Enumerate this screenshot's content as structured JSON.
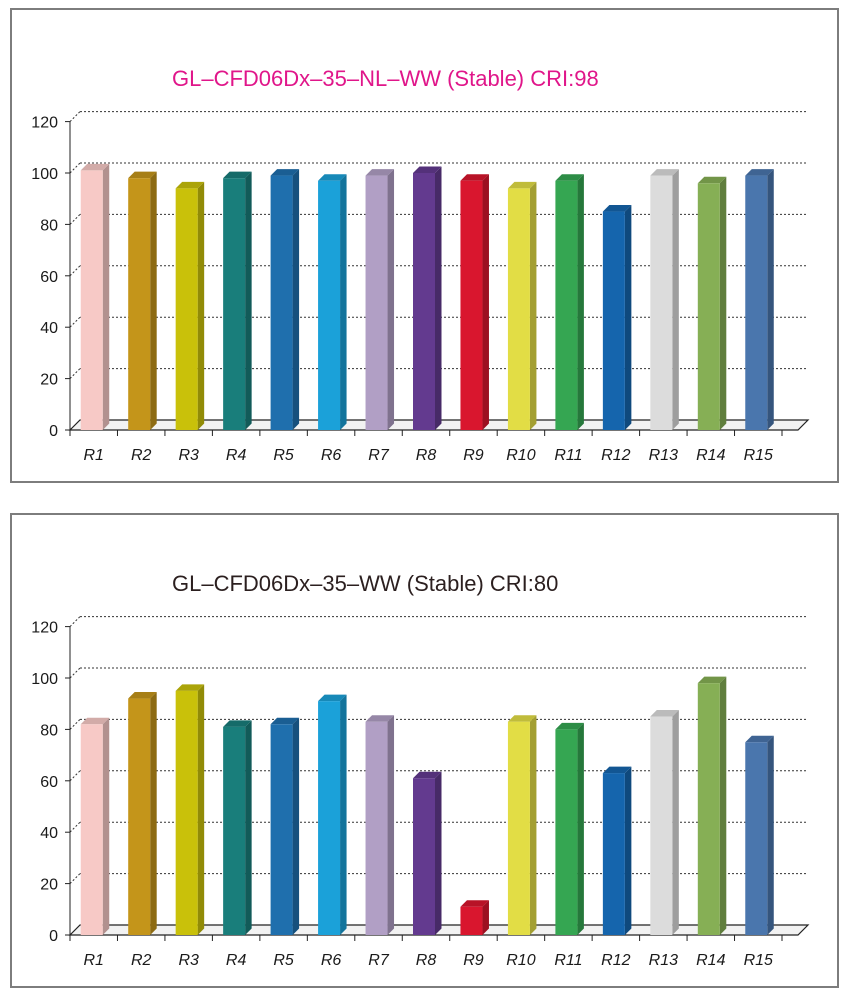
{
  "chart_data": [
    {
      "type": "bar",
      "title": "GL–CFD06Dx–35–NL–WW (Stable) CRI:98",
      "title_color": "#e0168a",
      "categories": [
        "R1",
        "R2",
        "R3",
        "R4",
        "R5",
        "R6",
        "R7",
        "R8",
        "R9",
        "R10",
        "R11",
        "R12",
        "R13",
        "R14",
        "R15"
      ],
      "values": [
        101,
        98,
        94,
        98,
        99,
        97,
        99,
        100,
        97,
        94,
        97,
        85,
        99,
        96,
        99
      ],
      "ylim": [
        0,
        120
      ],
      "yticks": [
        0,
        20,
        40,
        60,
        80,
        100,
        120
      ],
      "xlabel": "",
      "ylabel": "",
      "grid": true,
      "bar_colors": [
        "#f7c9c6",
        "#c4951a",
        "#c9c10a",
        "#197e7b",
        "#1f6fad",
        "#1ba1d9",
        "#b19fc5",
        "#633a8f",
        "#d9162e",
        "#e2dd45",
        "#35a652",
        "#1565ad",
        "#dcdcdc",
        "#86af55",
        "#4a76ad"
      ]
    },
    {
      "type": "bar",
      "title": "GL–CFD06Dx–35–WW (Stable) CRI:80",
      "title_color": "#2b1f1f",
      "categories": [
        "R1",
        "R2",
        "R3",
        "R4",
        "R5",
        "R6",
        "R7",
        "R8",
        "R9",
        "R10",
        "R11",
        "R12",
        "R13",
        "R14",
        "R15"
      ],
      "values": [
        82,
        92,
        95,
        81,
        82,
        91,
        83,
        61,
        11,
        83,
        80,
        63,
        85,
        98,
        75
      ],
      "ylim": [
        0,
        120
      ],
      "yticks": [
        0,
        20,
        40,
        60,
        80,
        100,
        120
      ],
      "xlabel": "",
      "ylabel": "",
      "grid": true,
      "bar_colors": [
        "#f7c9c6",
        "#c4951a",
        "#c9c10a",
        "#197e7b",
        "#1f6fad",
        "#1ba1d9",
        "#b19fc5",
        "#633a8f",
        "#d9162e",
        "#e2dd45",
        "#35a652",
        "#1565ad",
        "#dcdcdc",
        "#86af55",
        "#4a76ad"
      ]
    }
  ]
}
